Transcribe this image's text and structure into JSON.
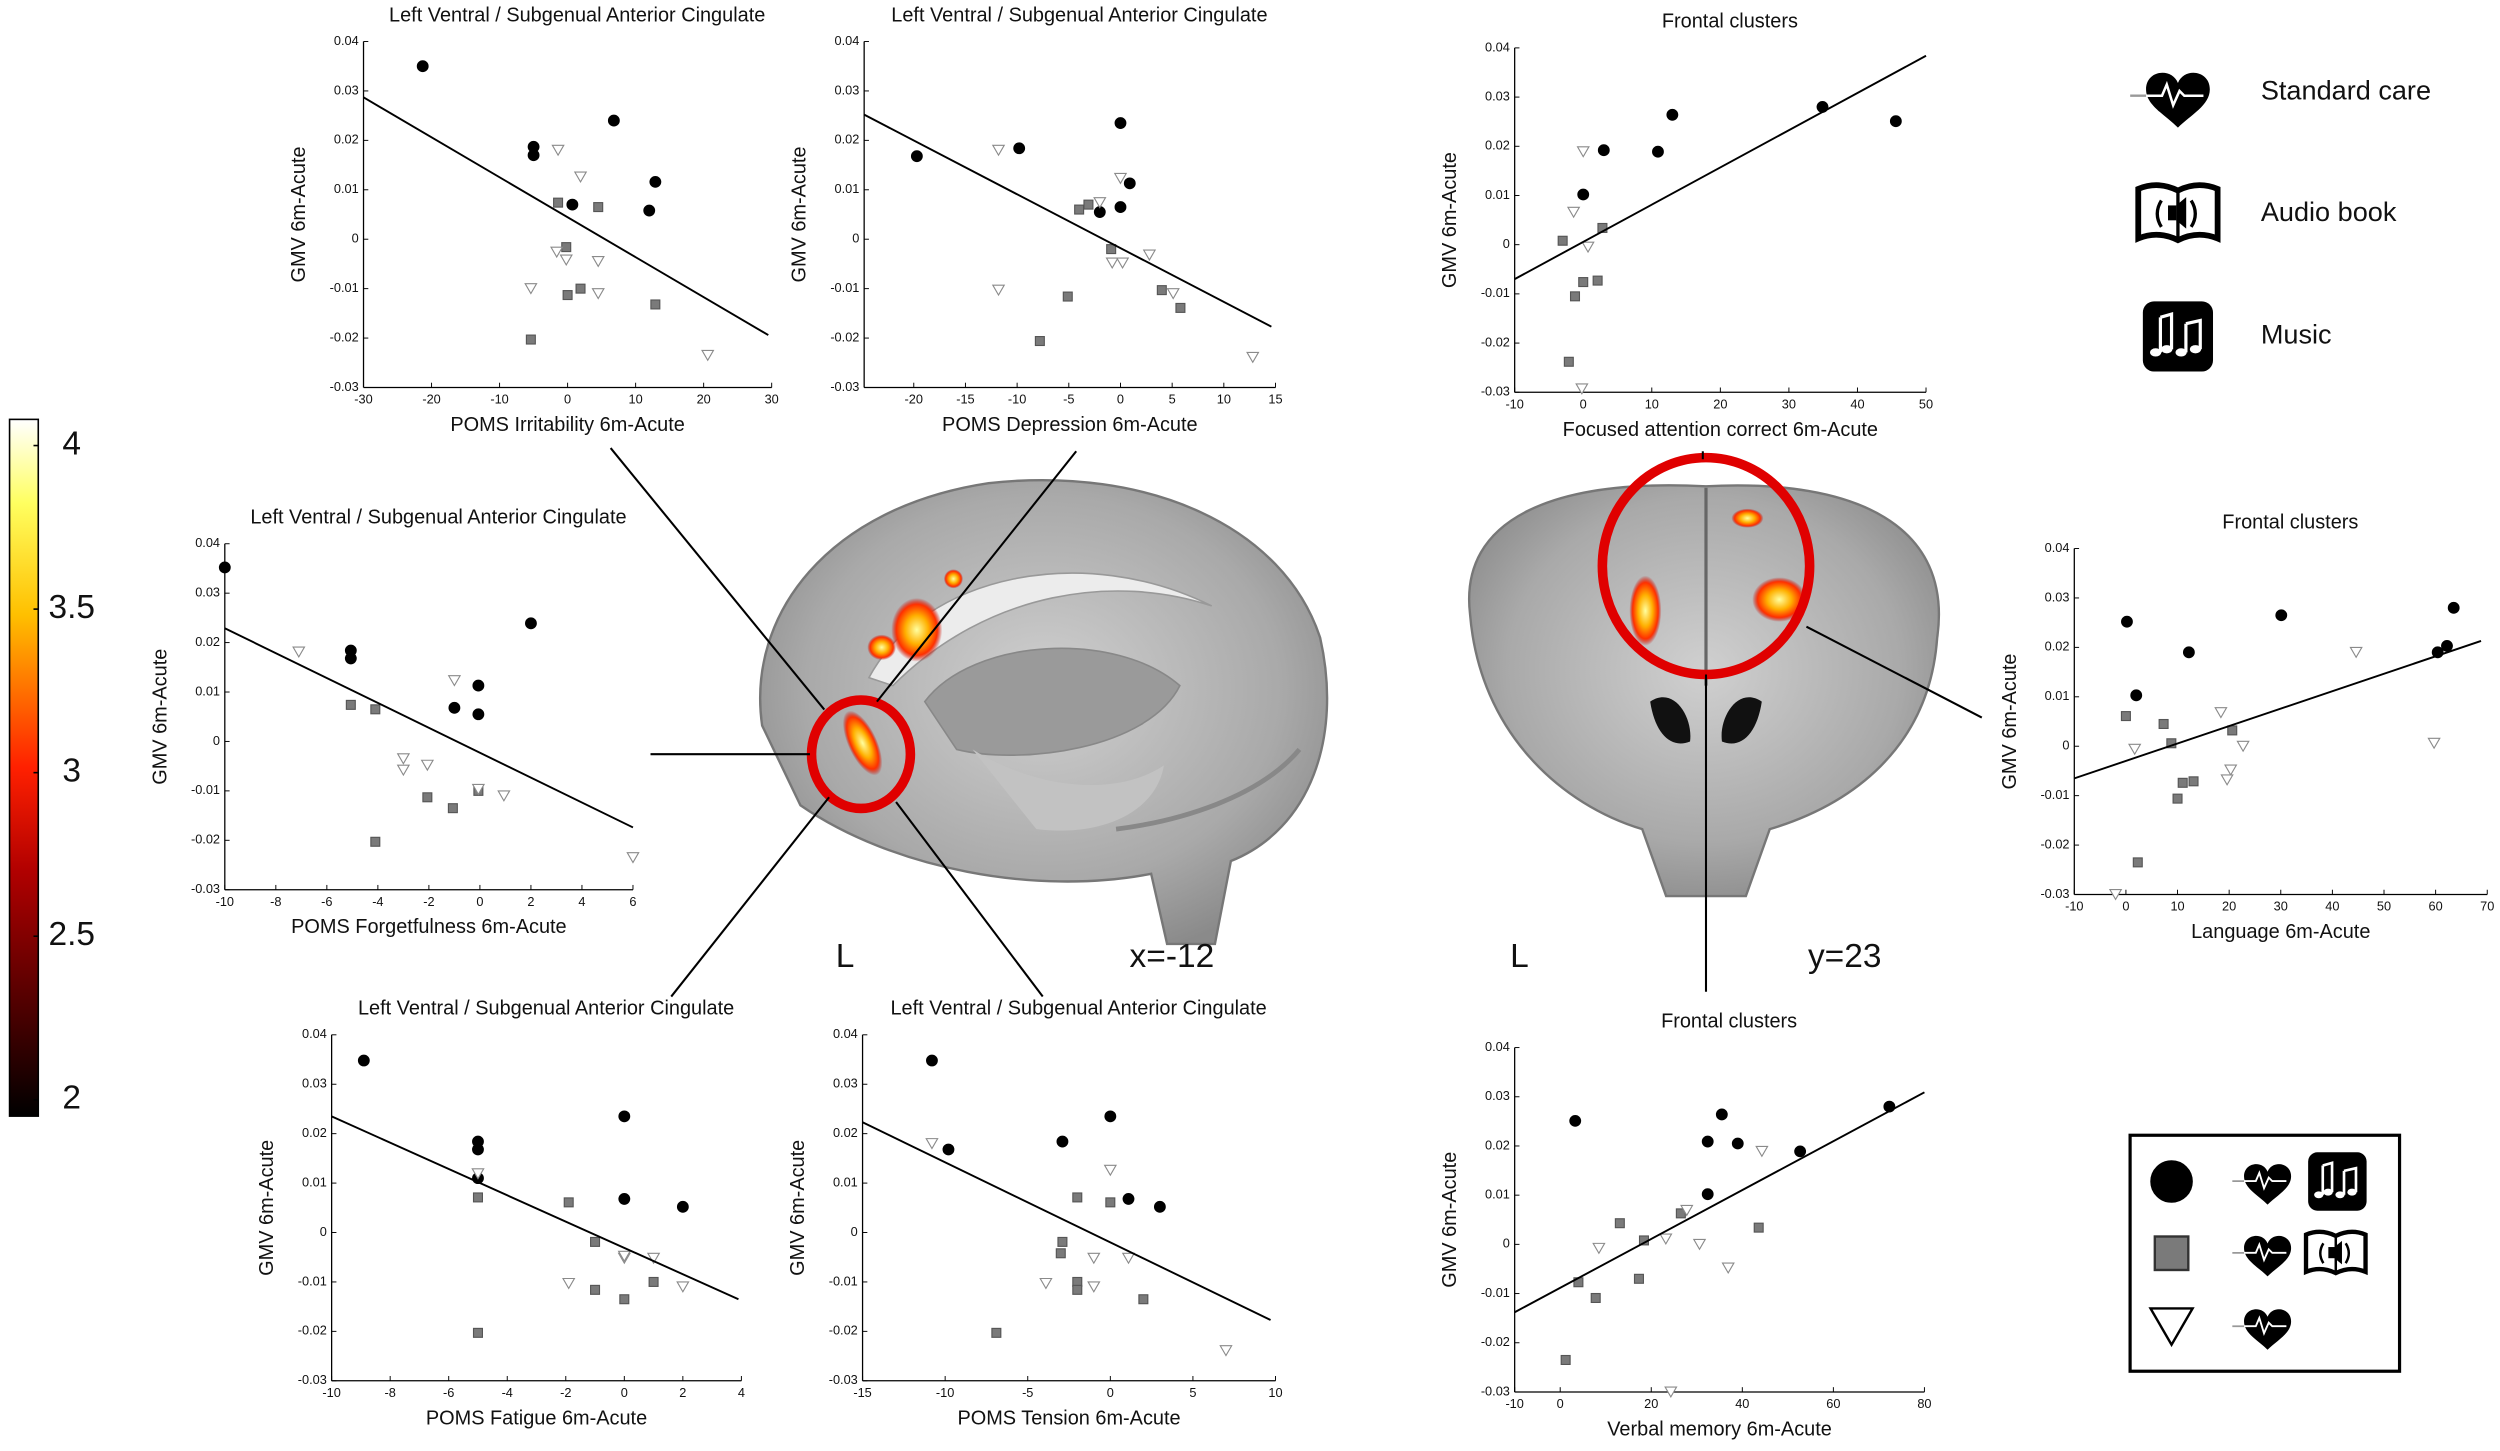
{
  "colorbar": {
    "lim": [
      1.95,
      4.08
    ],
    "ticks": [
      2,
      2.5,
      3,
      3.5,
      4
    ]
  },
  "brain_labels": {
    "sagittal": {
      "side": "L",
      "slice": "x=-12"
    },
    "coronal": {
      "side": "L",
      "slice": "y=23"
    }
  },
  "legend": [
    {
      "label": "Standard care",
      "marker": "triangle"
    },
    {
      "label": "Audio book",
      "marker": "square"
    },
    {
      "label": "Music",
      "marker": "circle"
    }
  ],
  "chart_data": [
    {
      "type": "scatter",
      "title": "Left Ventral / Subgenual Anterior Cingulate",
      "xlabel": "POMS Irritability 6m-Acute",
      "ylabel": "GMV 6m-Acute",
      "xlim": [
        -30,
        30
      ],
      "ylim": [
        -0.03,
        0.04
      ],
      "xticks": [
        -30,
        -20,
        -10,
        0,
        10,
        20,
        30
      ],
      "yticks": [
        -0.03,
        -0.02,
        -0.01,
        0,
        0.01,
        0.02,
        0.03,
        0.04
      ],
      "fit": {
        "x": [
          -30,
          29.5
        ],
        "y": [
          0.0287,
          -0.0194
        ]
      },
      "series": [
        {
          "marker": "circle",
          "color": "#000000",
          "edge": "#000000",
          "x": [
            -21.3,
            -5,
            -5,
            0.7,
            6.8,
            12.9,
            12
          ],
          "y": [
            0.035,
            0.0187,
            0.017,
            0.007,
            0.024,
            0.0116,
            0.0058
          ]
        },
        {
          "marker": "square",
          "color": "#7a7a7a",
          "edge": "#555555",
          "x": [
            -1.4,
            4.5,
            -0.2,
            0,
            1.9,
            12.9,
            -5.4
          ],
          "y": [
            0.0074,
            0.0065,
            -0.0016,
            -0.0113,
            -0.01,
            -0.0132,
            -0.0203
          ]
        },
        {
          "marker": "triangle",
          "color": "#ffffff",
          "edge": "#8a8a8a",
          "x": [
            -1.4,
            1.9,
            -1.6,
            -0.2,
            4.5,
            -5.4,
            4.5,
            20.6
          ],
          "y": [
            0.018,
            0.0126,
            -0.0026,
            -0.0042,
            -0.0045,
            -0.01,
            -0.011,
            -0.0235
          ]
        }
      ]
    },
    {
      "type": "scatter",
      "title": "Left Ventral / Subgenual Anterior Cingulate",
      "xlabel": "POMS Depression 6m-Acute",
      "ylabel": "GMV 6m-Acute",
      "xlim": [
        -24.8,
        15
      ],
      "ylim": [
        -0.03,
        0.04
      ],
      "xticks": [
        -20,
        -15,
        -10,
        -5,
        0,
        5,
        10,
        15
      ],
      "yticks": [
        -0.03,
        -0.02,
        -0.01,
        0,
        0.01,
        0.02,
        0.03,
        0.04
      ],
      "fit": {
        "x": [
          -24.8,
          14.6
        ],
        "y": [
          0.0252,
          -0.0177
        ]
      },
      "series": [
        {
          "marker": "circle",
          "color": "#000000",
          "edge": "#000000",
          "x": [
            -19.7,
            -9.8,
            -2,
            0,
            0,
            0.9
          ],
          "y": [
            0.0168,
            0.0184,
            0.0055,
            0.0235,
            0.0065,
            0.0113
          ]
        },
        {
          "marker": "square",
          "color": "#7a7a7a",
          "edge": "#555555",
          "x": [
            -4,
            -3.1,
            -0.9,
            -5.1,
            -7.8,
            4,
            5.8
          ],
          "y": [
            0.006,
            0.007,
            -0.002,
            -0.0116,
            -0.0206,
            -0.0103,
            -0.0139
          ]
        },
        {
          "marker": "triangle",
          "color": "#ffffff",
          "edge": "#8a8a8a",
          "x": [
            -11.8,
            0,
            -2,
            -0.8,
            0.2,
            2.8,
            5.1,
            -11.8,
            12.8
          ],
          "y": [
            0.018,
            0.0123,
            0.0074,
            -0.0048,
            -0.0048,
            -0.0032,
            -0.011,
            -0.0103,
            -0.0239
          ]
        }
      ]
    },
    {
      "type": "scatter",
      "title": "Frontal clusters",
      "xlabel": "Focused attention correct 6m-Acute",
      "ylabel": "GMV 6m-Acute",
      "xlim": [
        -10,
        50
      ],
      "ylim": [
        -0.03,
        0.04
      ],
      "xticks": [
        -10,
        0,
        10,
        20,
        30,
        40,
        50
      ],
      "yticks": [
        -0.03,
        -0.02,
        -0.01,
        0,
        0.01,
        0.02,
        0.03,
        0.04
      ],
      "fit": {
        "x": [
          -10,
          50
        ],
        "y": [
          -0.007,
          0.0384
        ]
      },
      "series": [
        {
          "marker": "circle",
          "color": "#000000",
          "edge": "#000000",
          "x": [
            0,
            3,
            10.9,
            13,
            34.9,
            45.6
          ],
          "y": [
            0.0102,
            0.0192,
            0.0189,
            0.0264,
            0.028,
            0.0251
          ]
        },
        {
          "marker": "square",
          "color": "#7a7a7a",
          "edge": "#555555",
          "x": [
            -3,
            0,
            -1.2,
            2.1,
            2.8,
            -2.1
          ],
          "y": [
            0.0008,
            -0.0076,
            -0.0105,
            -0.0073,
            0.0034,
            -0.0238
          ]
        },
        {
          "marker": "triangle",
          "color": "#ffffff",
          "edge": "#8a8a8a",
          "x": [
            -1.4,
            0,
            0.7,
            -0.2
          ],
          "y": [
            0.0066,
            0.0189,
            -0.0005,
            -0.0293
          ]
        }
      ]
    },
    {
      "type": "scatter",
      "title": "Left Ventral / Subgenual Anterior Cingulate",
      "xlabel": "POMS Forgetfulness 6m-Acute",
      "ylabel": "GMV 6m-Acute",
      "xlim": [
        -10,
        6
      ],
      "ylim": [
        -0.03,
        0.04
      ],
      "xticks": [
        -10,
        -8,
        -6,
        -4,
        -2,
        0,
        2,
        4,
        6
      ],
      "yticks": [
        -0.03,
        -0.02,
        -0.01,
        0,
        0.01,
        0.02,
        0.03,
        0.04
      ],
      "fit": {
        "x": [
          -10,
          6
        ],
        "y": [
          0.0229,
          -0.0174
        ]
      },
      "series": [
        {
          "marker": "circle",
          "color": "#000000",
          "edge": "#000000",
          "x": [
            -10,
            -5.06,
            -5.06,
            -1,
            -0.06,
            -0.06,
            2
          ],
          "y": [
            0.0352,
            0.0184,
            0.0168,
            0.0068,
            0.0113,
            0.0055,
            0.0239
          ]
        },
        {
          "marker": "square",
          "color": "#7a7a7a",
          "edge": "#555555",
          "x": [
            -5.06,
            -4.1,
            -2.06,
            -1.06,
            -0.06,
            -4.1
          ],
          "y": [
            0.0074,
            0.0065,
            -0.0113,
            -0.0135,
            -0.01,
            -0.0203
          ]
        },
        {
          "marker": "triangle",
          "color": "#ffffff",
          "edge": "#8a8a8a",
          "x": [
            -7.1,
            -1,
            -3,
            -2.06,
            -3,
            -0.06,
            0.94,
            6
          ],
          "y": [
            0.0181,
            0.0123,
            -0.0035,
            -0.0048,
            -0.0058,
            -0.0097,
            -0.011,
            -0.0235
          ]
        }
      ]
    },
    {
      "type": "scatter",
      "title": "Frontal clusters",
      "xlabel": "Language 6m-Acute",
      "ylabel": "GMV 6m-Acute",
      "xlim": [
        -10,
        70
      ],
      "ylim": [
        -0.03,
        0.04
      ],
      "xticks": [
        -10,
        0,
        10,
        20,
        30,
        40,
        50,
        60,
        70
      ],
      "yticks": [
        -0.03,
        -0.02,
        -0.01,
        0,
        0.01,
        0.02,
        0.03,
        0.04
      ],
      "fit": {
        "x": [
          -10,
          68.8
        ],
        "y": [
          -0.0065,
          0.0213
        ]
      },
      "series": [
        {
          "marker": "circle",
          "color": "#000000",
          "edge": "#000000",
          "x": [
            0.2,
            2,
            12.2,
            30.1,
            62.2,
            60.4,
            63.5
          ],
          "y": [
            0.0252,
            0.0103,
            0.019,
            0.0265,
            0.0203,
            0.019,
            0.028
          ]
        },
        {
          "marker": "square",
          "color": "#7a7a7a",
          "edge": "#555555",
          "x": [
            0,
            7.3,
            8.8,
            10,
            11,
            13.1,
            2.3,
            20.6
          ],
          "y": [
            0.0061,
            0.0045,
            0.0006,
            -0.0106,
            -0.0074,
            -0.0071,
            -0.0235,
            0.0032
          ]
        },
        {
          "marker": "triangle",
          "color": "#ffffff",
          "edge": "#8a8a8a",
          "x": [
            1.7,
            18.4,
            20.3,
            19.6,
            22.7,
            44.6,
            59.7,
            -2
          ],
          "y": [
            -0.0006,
            0.0068,
            -0.0048,
            -0.0068,
            0,
            0.019,
            0.0006,
            -0.03
          ]
        }
      ]
    },
    {
      "type": "scatter",
      "title": "Left Ventral / Subgenual Anterior Cingulate",
      "xlabel": "POMS Fatigue 6m-Acute",
      "ylabel": "GMV 6m-Acute",
      "xlim": [
        -10,
        4
      ],
      "ylim": [
        -0.03,
        0.04
      ],
      "xticks": [
        -10,
        -8,
        -6,
        -4,
        -2,
        0,
        2,
        4
      ],
      "yticks": [
        -0.03,
        -0.02,
        -0.01,
        0,
        0.01,
        0.02,
        0.03,
        0.04
      ],
      "fit": {
        "x": [
          -10,
          3.9
        ],
        "y": [
          0.0235,
          -0.0135
        ]
      },
      "series": [
        {
          "marker": "circle",
          "color": "#000000",
          "edge": "#000000",
          "x": [
            -8.9,
            -5,
            -5,
            -5,
            0,
            0,
            2
          ],
          "y": [
            0.0348,
            0.0184,
            0.0168,
            0.011,
            0.0235,
            0.0068,
            0.0052
          ]
        },
        {
          "marker": "square",
          "color": "#7a7a7a",
          "edge": "#555555",
          "x": [
            -5,
            -1.9,
            -1,
            0,
            1,
            -1,
            -5
          ],
          "y": [
            0.0071,
            0.0061,
            -0.0019,
            -0.0135,
            -0.01,
            -0.0116,
            -0.0203
          ]
        },
        {
          "marker": "triangle",
          "color": "#ffffff",
          "edge": "#8a8a8a",
          "x": [
            -5,
            0,
            1,
            -1.9,
            2,
            0
          ],
          "y": [
            0.0119,
            -0.0052,
            -0.0052,
            -0.0103,
            -0.011,
            -0.0048
          ]
        }
      ]
    },
    {
      "type": "scatter",
      "title": "Left Ventral / Subgenual Anterior Cingulate",
      "xlabel": "POMS Tension 6m-Acute",
      "ylabel": "GMV 6m-Acute",
      "xlim": [
        -15,
        10
      ],
      "ylim": [
        -0.03,
        0.04
      ],
      "xticks": [
        -15,
        -10,
        -5,
        0,
        5,
        10
      ],
      "yticks": [
        -0.03,
        -0.02,
        -0.01,
        0,
        0.01,
        0.02,
        0.03,
        0.04
      ],
      "fit": {
        "x": [
          -15,
          9.7
        ],
        "y": [
          0.0223,
          -0.0177
        ]
      },
      "series": [
        {
          "marker": "circle",
          "color": "#000000",
          "edge": "#000000",
          "x": [
            -10.8,
            -9.8,
            -2.9,
            0,
            1.1,
            3
          ],
          "y": [
            0.0348,
            0.0168,
            0.0184,
            0.0235,
            0.0068,
            0.0052
          ]
        },
        {
          "marker": "square",
          "color": "#7a7a7a",
          "edge": "#555555",
          "x": [
            -2.9,
            -2,
            0,
            -2,
            -2,
            2,
            -6.9,
            -3
          ],
          "y": [
            -0.0019,
            0.0071,
            0.0061,
            -0.01,
            -0.0116,
            -0.0135,
            -0.0203,
            -0.0042
          ]
        },
        {
          "marker": "triangle",
          "color": "#ffffff",
          "edge": "#8a8a8a",
          "x": [
            -10.8,
            0,
            -1,
            -3.9,
            -1,
            1.1,
            7
          ],
          "y": [
            0.018,
            0.0126,
            -0.0052,
            -0.0103,
            -0.011,
            -0.0052,
            -0.0239
          ]
        }
      ]
    },
    {
      "type": "scatter",
      "title": "Frontal clusters",
      "xlabel": "Verbal memory 6m-Acute",
      "ylabel": "GMV 6m-Acute",
      "xlim": [
        -10,
        80
      ],
      "ylim": [
        -0.03,
        0.04
      ],
      "xticks": [
        -10,
        0,
        20,
        40,
        60,
        80
      ],
      "yticks": [
        -0.03,
        -0.02,
        -0.01,
        0,
        0.01,
        0.02,
        0.03,
        0.04
      ],
      "fit": {
        "x": [
          -10,
          80
        ],
        "y": [
          -0.0138,
          0.0309
        ]
      },
      "series": [
        {
          "marker": "circle",
          "color": "#000000",
          "edge": "#000000",
          "x": [
            3.3,
            32.4,
            35.5,
            39,
            32.4,
            52.7,
            72.3
          ],
          "y": [
            0.0251,
            0.0209,
            0.0264,
            0.0205,
            0.0102,
            0.0189,
            0.028
          ]
        },
        {
          "marker": "square",
          "color": "#7a7a7a",
          "edge": "#555555",
          "x": [
            13.1,
            4,
            7.8,
            18.4,
            17.3,
            26.5,
            43.6,
            1.2
          ],
          "y": [
            0.0043,
            -0.0077,
            -0.0109,
            0.0008,
            -0.007,
            0.0063,
            0.0034,
            -0.0235
          ]
        },
        {
          "marker": "triangle",
          "color": "#ffffff",
          "edge": "#8a8a8a",
          "x": [
            8.5,
            23.2,
            27.8,
            30.6,
            36.9,
            44.3,
            24.3
          ],
          "y": [
            -0.0008,
            0.0011,
            0.0069,
            0,
            -0.0048,
            0.0189,
            -0.03
          ]
        }
      ]
    }
  ]
}
